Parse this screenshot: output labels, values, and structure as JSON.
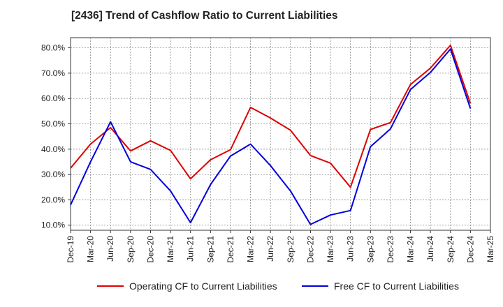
{
  "chart_data": {
    "type": "line",
    "title": "[2436]  Trend of Cashflow Ratio to Current Liabilities",
    "xlabel": "",
    "ylabel": "",
    "x": [
      "Dec-19",
      "Mar-20",
      "Jun-20",
      "Sep-20",
      "Dec-20",
      "Mar-21",
      "Jun-21",
      "Sep-21",
      "Dec-21",
      "Mar-22",
      "Jun-22",
      "Sep-22",
      "Dec-22",
      "Mar-23",
      "Jun-23",
      "Sep-23",
      "Dec-23",
      "Mar-24",
      "Jun-24",
      "Sep-24",
      "Dec-24",
      "Mar-25"
    ],
    "ylim": [
      8,
      84
    ],
    "yticks": [
      "10.0%",
      "20.0%",
      "30.0%",
      "40.0%",
      "50.0%",
      "60.0%",
      "70.0%",
      "80.0%"
    ],
    "ytick_values": [
      10,
      20,
      30,
      40,
      50,
      60,
      70,
      80
    ],
    "grid": true,
    "legend_position": "bottom",
    "series": [
      {
        "name": "Operating CF to Current Liabilities",
        "color": "#dd0000",
        "values": [
          32.5,
          42.0,
          48.5,
          39.3,
          43.3,
          39.5,
          28.3,
          35.8,
          39.8,
          56.5,
          52.3,
          47.5,
          37.5,
          34.5,
          25.0,
          47.8,
          50.5,
          65.5,
          72.0,
          81.0,
          58.0,
          null
        ]
      },
      {
        "name": "Free CF to Current Liabilities",
        "color": "#0000dd",
        "values": [
          18.0,
          35.0,
          50.8,
          35.0,
          32.0,
          23.5,
          11.0,
          26.0,
          37.3,
          42.0,
          33.5,
          23.5,
          10.3,
          14.0,
          15.8,
          41.0,
          48.0,
          63.5,
          70.3,
          79.5,
          56.0,
          null
        ]
      }
    ]
  }
}
